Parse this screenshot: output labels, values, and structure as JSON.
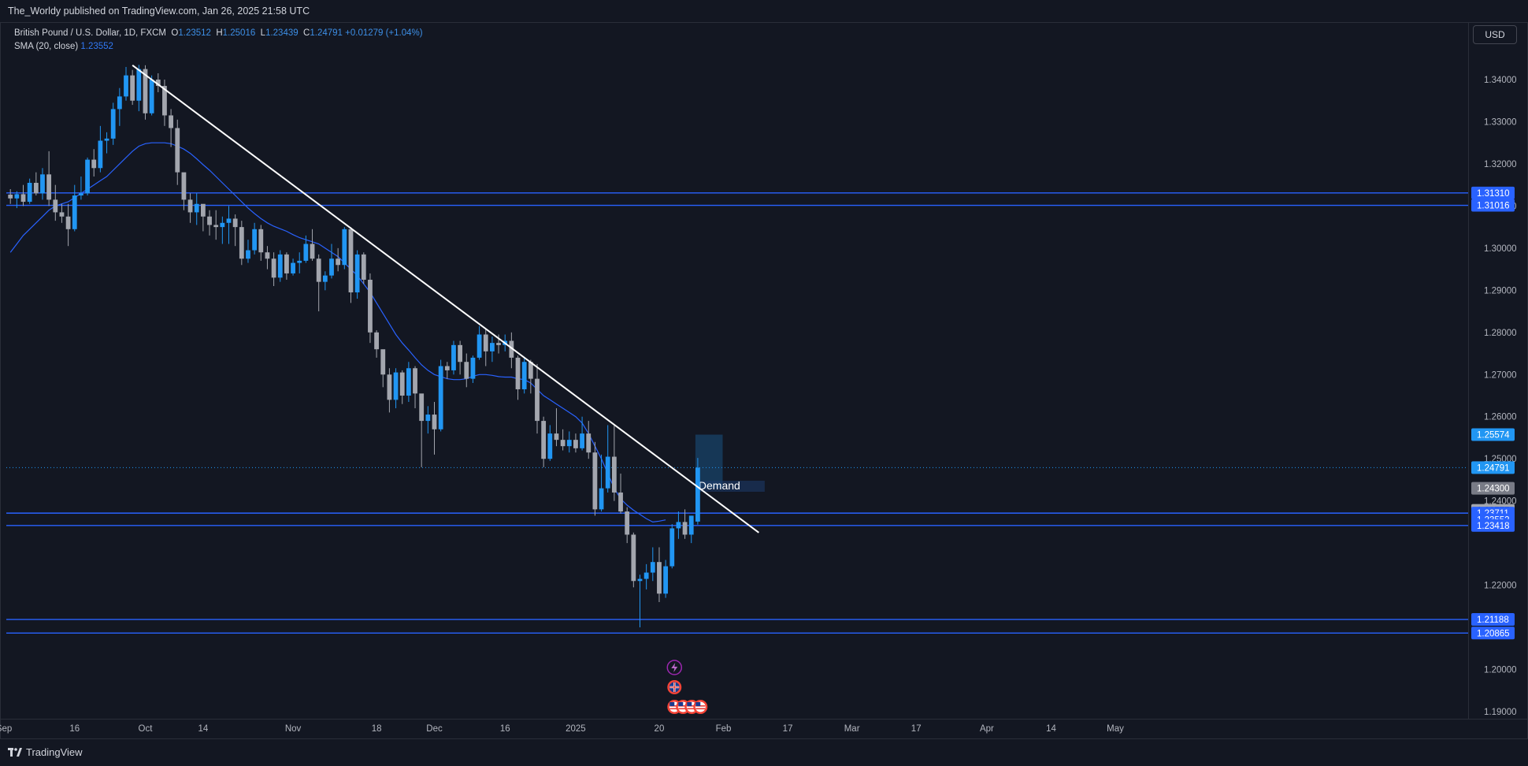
{
  "header": {
    "publisher": "The_Worldy published on TradingView.com, Jan 26, 2025 21:58 UTC"
  },
  "legend": {
    "symbol": "British Pound / U.S. Dollar, 1D, FXCM",
    "open_label": "O",
    "open": "1.23512",
    "high_label": "H",
    "high": "1.25016",
    "low_label": "L",
    "low": "1.23439",
    "close_label": "C",
    "close": "1.24791",
    "change": "+0.01279 (+1.04%)",
    "sma_label": "SMA (20, close)",
    "sma_value": "1.23552"
  },
  "currency_button": "USD",
  "footer": {
    "brand": "TradingView"
  },
  "chart_data": {
    "type": "candlestick",
    "title": "British Pound / U.S. Dollar, 1D, FXCM",
    "yticks": [
      "1.34000",
      "1.33000",
      "1.32000",
      "1.31000",
      "1.30000",
      "1.29000",
      "1.28000",
      "1.27000",
      "1.26000",
      "1.25000",
      "1.24000",
      "1.22000",
      "1.20000",
      "1.19000"
    ],
    "ylim": [
      1.187,
      1.351
    ],
    "xticks": [
      {
        "label": "Sep",
        "i": -1
      },
      {
        "label": "16",
        "i": 10
      },
      {
        "label": "Oct",
        "i": 21
      },
      {
        "label": "14",
        "i": 30
      },
      {
        "label": "Nov",
        "i": 44
      },
      {
        "label": "18",
        "i": 57
      },
      {
        "label": "Dec",
        "i": 66
      },
      {
        "label": "16",
        "i": 77
      },
      {
        "label": "2025",
        "i": 88
      },
      {
        "label": "20",
        "i": 101
      },
      {
        "label": "Feb",
        "i": 111
      },
      {
        "label": "17",
        "i": 121
      },
      {
        "label": "Mar",
        "i": 131
      },
      {
        "label": "17",
        "i": 141
      },
      {
        "label": "Apr",
        "i": 152
      },
      {
        "label": "14",
        "i": 162
      },
      {
        "label": "May",
        "i": 172
      }
    ],
    "colors": {
      "up": "#2196f3",
      "down": "#a3a6ae",
      "sma": "#2962ff",
      "hline": "#2962ff",
      "trend": "#ffffff"
    },
    "candles": [
      [
        1.3127,
        1.314,
        1.3105,
        1.3118
      ],
      [
        1.3118,
        1.3135,
        1.3095,
        1.3128
      ],
      [
        1.3128,
        1.315,
        1.31,
        1.311
      ],
      [
        1.311,
        1.3165,
        1.3105,
        1.3155
      ],
      [
        1.3155,
        1.318,
        1.3125,
        1.313
      ],
      [
        1.313,
        1.319,
        1.3115,
        1.3175
      ],
      [
        1.3175,
        1.323,
        1.31,
        1.3115
      ],
      [
        1.3115,
        1.315,
        1.3065,
        1.3085
      ],
      [
        1.3085,
        1.3105,
        1.306,
        1.3075
      ],
      [
        1.3075,
        1.3105,
        1.3005,
        1.3045
      ],
      [
        1.3045,
        1.315,
        1.304,
        1.3125
      ],
      [
        1.3125,
        1.317,
        1.3115,
        1.313
      ],
      [
        1.313,
        1.3215,
        1.3125,
        1.321
      ],
      [
        1.321,
        1.3235,
        1.317,
        1.319
      ],
      [
        1.319,
        1.329,
        1.318,
        1.3255
      ],
      [
        1.3255,
        1.3275,
        1.3225,
        1.326
      ],
      [
        1.326,
        1.3345,
        1.3245,
        1.333
      ],
      [
        1.333,
        1.338,
        1.329,
        1.336
      ],
      [
        1.336,
        1.343,
        1.335,
        1.341
      ],
      [
        1.341,
        1.3423,
        1.334,
        1.335
      ],
      [
        1.335,
        1.3435,
        1.3325,
        1.3425
      ],
      [
        1.3425,
        1.3434,
        1.3305,
        1.332
      ],
      [
        1.332,
        1.341,
        1.3315,
        1.34
      ],
      [
        1.34,
        1.3415,
        1.337,
        1.3385
      ],
      [
        1.3385,
        1.34,
        1.329,
        1.3315
      ],
      [
        1.3315,
        1.333,
        1.324,
        1.3285
      ],
      [
        1.3285,
        1.3305,
        1.315,
        1.318
      ],
      [
        1.318,
        1.3165,
        1.309,
        1.3115
      ],
      [
        1.3115,
        1.313,
        1.306,
        1.3085
      ],
      [
        1.3085,
        1.313,
        1.3055,
        1.3105
      ],
      [
        1.3105,
        1.31,
        1.304,
        1.3075
      ],
      [
        1.3075,
        1.309,
        1.303,
        1.3055
      ],
      [
        1.3055,
        1.309,
        1.302,
        1.305
      ],
      [
        1.305,
        1.3075,
        1.301,
        1.306
      ],
      [
        1.306,
        1.31,
        1.301,
        1.307
      ],
      [
        1.307,
        1.308,
        1.3005,
        1.305
      ],
      [
        1.305,
        1.3065,
        1.296,
        1.2975
      ],
      [
        1.2975,
        1.302,
        1.2965,
        1.2995
      ],
      [
        1.2995,
        1.306,
        1.2985,
        1.3045
      ],
      [
        1.3045,
        1.3055,
        1.297,
        1.299
      ],
      [
        1.299,
        1.3005,
        1.295,
        1.2975
      ],
      [
        1.2975,
        1.299,
        1.291,
        1.293
      ],
      [
        1.293,
        1.2995,
        1.292,
        1.2985
      ],
      [
        1.2985,
        1.299,
        1.2925,
        1.294
      ],
      [
        1.294,
        1.2975,
        1.2935,
        1.2965
      ],
      [
        1.2965,
        1.299,
        1.294,
        1.297
      ],
      [
        1.297,
        1.303,
        1.2965,
        1.301
      ],
      [
        1.301,
        1.3045,
        1.297,
        1.2975
      ],
      [
        1.2975,
        1.2985,
        1.285,
        1.292
      ],
      [
        1.292,
        1.2945,
        1.29,
        1.2935
      ],
      [
        1.2935,
        1.301,
        1.2928,
        1.2975
      ],
      [
        1.2975,
        1.3,
        1.2945,
        1.296
      ],
      [
        1.296,
        1.305,
        1.295,
        1.3045
      ],
      [
        1.3045,
        1.305,
        1.287,
        1.2895
      ],
      [
        1.2895,
        1.2995,
        1.288,
        1.2985
      ],
      [
        1.2985,
        1.299,
        1.2915,
        1.2925
      ],
      [
        1.2925,
        1.294,
        1.2775,
        1.28
      ],
      [
        1.28,
        1.2805,
        1.274,
        1.276
      ],
      [
        1.276,
        1.2745,
        1.267,
        1.27
      ],
      [
        1.27,
        1.2715,
        1.261,
        1.264
      ],
      [
        1.264,
        1.2715,
        1.262,
        1.2705
      ],
      [
        1.2705,
        1.271,
        1.263,
        1.265
      ],
      [
        1.265,
        1.273,
        1.2635,
        1.2715
      ],
      [
        1.2715,
        1.272,
        1.262,
        1.2655
      ],
      [
        1.2655,
        1.265,
        1.248,
        1.259
      ],
      [
        1.259,
        1.2625,
        1.256,
        1.2605
      ],
      [
        1.2605,
        1.2635,
        1.251,
        1.257
      ],
      [
        1.257,
        1.2735,
        1.2565,
        1.272
      ],
      [
        1.272,
        1.273,
        1.269,
        1.271
      ],
      [
        1.271,
        1.278,
        1.27,
        1.277
      ],
      [
        1.277,
        1.278,
        1.27,
        1.273
      ],
      [
        1.273,
        1.275,
        1.267,
        1.269
      ],
      [
        1.269,
        1.2745,
        1.268,
        1.274
      ],
      [
        1.274,
        1.2815,
        1.2735,
        1.2795
      ],
      [
        1.2795,
        1.281,
        1.272,
        1.2755
      ],
      [
        1.2755,
        1.279,
        1.273,
        1.2775
      ],
      [
        1.2775,
        1.2795,
        1.275,
        1.277
      ],
      [
        1.277,
        1.2795,
        1.2755,
        1.278
      ],
      [
        1.278,
        1.28,
        1.2715,
        1.274
      ],
      [
        1.274,
        1.2745,
        1.264,
        1.2665
      ],
      [
        1.2665,
        1.274,
        1.2655,
        1.273
      ],
      [
        1.273,
        1.2735,
        1.2655,
        1.269
      ],
      [
        1.269,
        1.2725,
        1.256,
        1.259
      ],
      [
        1.259,
        1.26,
        1.248,
        1.25
      ],
      [
        1.25,
        1.258,
        1.2495,
        1.256
      ],
      [
        1.256,
        1.262,
        1.253,
        1.2545
      ],
      [
        1.2545,
        1.257,
        1.252,
        1.253
      ],
      [
        1.253,
        1.2565,
        1.2515,
        1.2545
      ],
      [
        1.2545,
        1.256,
        1.2515,
        1.2525
      ],
      [
        1.2525,
        1.26,
        1.252,
        1.256
      ],
      [
        1.256,
        1.259,
        1.25,
        1.2515
      ],
      [
        1.2515,
        1.254,
        1.2365,
        1.238
      ],
      [
        1.238,
        1.251,
        1.2375,
        1.243
      ],
      [
        1.243,
        1.258,
        1.242,
        1.2505
      ],
      [
        1.2505,
        1.258,
        1.24,
        1.242
      ],
      [
        1.242,
        1.2465,
        1.237,
        1.2375
      ],
      [
        1.2375,
        1.2385,
        1.23,
        1.232
      ],
      [
        1.232,
        1.2325,
        1.2195,
        1.221
      ],
      [
        1.221,
        1.2225,
        1.21,
        1.2215
      ],
      [
        1.2215,
        1.225,
        1.219,
        1.223
      ],
      [
        1.223,
        1.229,
        1.221,
        1.2255
      ],
      [
        1.2255,
        1.229,
        1.216,
        1.218
      ],
      [
        1.218,
        1.226,
        1.217,
        1.2245
      ],
      [
        1.2245,
        1.2345,
        1.224,
        1.2335
      ],
      [
        1.2335,
        1.2375,
        1.231,
        1.235
      ],
      [
        1.235,
        1.238,
        1.231,
        1.232
      ],
      [
        1.232,
        1.2365,
        1.23,
        1.2365
      ],
      [
        1.2351,
        1.2502,
        1.2344,
        1.2479
      ]
    ],
    "sma": [
      1.299,
      1.301,
      1.303,
      1.3045,
      1.306,
      1.3075,
      1.309,
      1.31,
      1.3105,
      1.311,
      1.312,
      1.313,
      1.314,
      1.315,
      1.316,
      1.317,
      1.3185,
      1.32,
      1.3215,
      1.323,
      1.3242,
      1.3248,
      1.325,
      1.325,
      1.325,
      1.3248,
      1.3242,
      1.3235,
      1.3225,
      1.3212,
      1.3198,
      1.3185,
      1.317,
      1.3155,
      1.314,
      1.3125,
      1.311,
      1.3095,
      1.3082,
      1.307,
      1.306,
      1.3052,
      1.3046,
      1.304,
      1.3032,
      1.3025,
      1.302,
      1.3015,
      1.301,
      1.3,
      1.299,
      1.298,
      1.2965,
      1.295,
      1.2935,
      1.2915,
      1.2895,
      1.287,
      1.2845,
      1.282,
      1.2795,
      1.2775,
      1.2758,
      1.274,
      1.2723,
      1.271,
      1.27,
      1.2695,
      1.269,
      1.2688,
      1.2688,
      1.269,
      1.2696,
      1.27,
      1.27,
      1.2698,
      1.2695,
      1.2694,
      1.2694,
      1.269,
      1.2688,
      1.268,
      1.2665,
      1.265,
      1.264,
      1.263,
      1.262,
      1.261,
      1.26,
      1.2585,
      1.256,
      1.253,
      1.25,
      1.2465,
      1.243,
      1.2405,
      1.239,
      1.2378,
      1.2368,
      1.2358,
      1.235,
      1.2352,
      1.2355
    ],
    "horizontal_levels": [
      "1.31310",
      "1.31016",
      "1.23711",
      "1.23418",
      "1.21188",
      "1.20865"
    ],
    "trendline": {
      "start": {
        "i": 19,
        "y": 1.3434
      },
      "end": {
        "i": 116.5,
        "y": 1.2325
      }
    },
    "demand_zone": {
      "label": "Demand",
      "i_start": 107,
      "i_end": 111,
      "top": 1.25574,
      "bottom": 1.243
    },
    "price_labels": [
      {
        "value": "1.31310",
        "type": "level"
      },
      {
        "value": "1.31016",
        "type": "level"
      },
      {
        "value": "1.25574",
        "type": "zone-top"
      },
      {
        "value": "1.24791",
        "type": "last"
      },
      {
        "value": "1.24300",
        "type": "zone-bottom"
      },
      {
        "value": "1.23777",
        "type": "gray"
      },
      {
        "value": "1.23711",
        "type": "level"
      },
      {
        "value": "1.23552",
        "type": "sma"
      },
      {
        "value": "1.23418",
        "type": "level"
      },
      {
        "value": "1.21188",
        "type": "level"
      },
      {
        "value": "1.20865",
        "type": "level"
      }
    ],
    "last_price": 1.24791,
    "events": [
      {
        "icon": "lightning-icon",
        "row": 0,
        "count": 1
      },
      {
        "icon": "flag-uk-icon",
        "row": 1,
        "count": 1
      },
      {
        "icon": "flag-us-icon",
        "row": 2,
        "count": 4
      }
    ]
  }
}
